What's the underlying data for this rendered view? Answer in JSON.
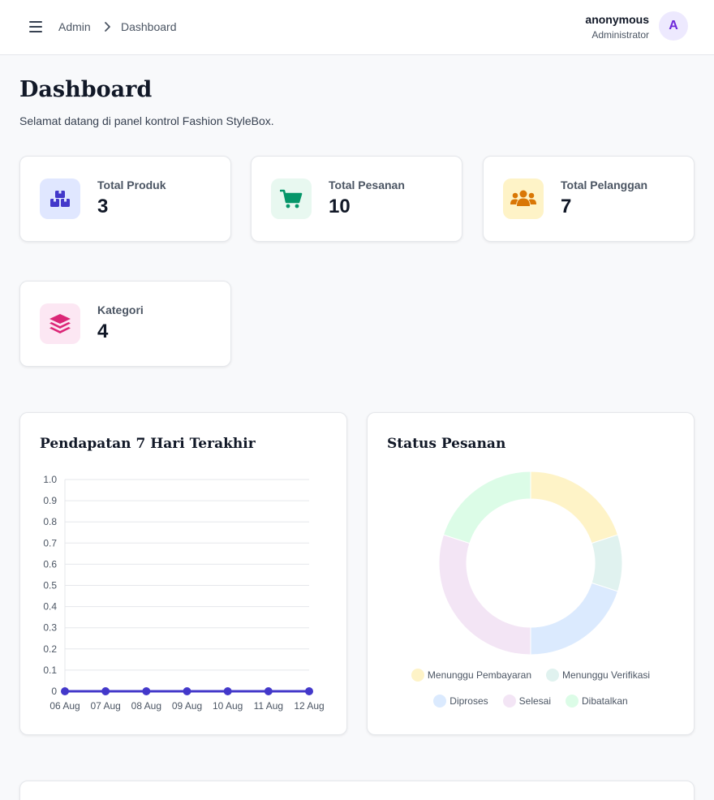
{
  "header": {
    "breadcrumb": [
      "Admin",
      "Dashboard"
    ],
    "user_name": "anonymous",
    "user_role": "Administrator",
    "avatar_initial": "A"
  },
  "page": {
    "title": "Dashboard",
    "subtitle": "Selamat datang di panel kontrol Fashion StyleBox."
  },
  "stats": [
    {
      "label": "Total Produk",
      "value": "3",
      "icon": "boxes-icon",
      "color": "#4338ca",
      "bg": "#e0e7ff"
    },
    {
      "label": "Total Pesanan",
      "value": "10",
      "icon": "shopping-cart-icon",
      "color": "#059669",
      "bg": "#e8f8f0"
    },
    {
      "label": "Total Pelanggan",
      "value": "7",
      "icon": "users-icon",
      "color": "#d97706",
      "bg": "#fef3c7"
    },
    {
      "label": "Kategori",
      "value": "4",
      "icon": "layers-icon",
      "color": "#db2777",
      "bg": "#fce7f3"
    }
  ],
  "revenue_panel": {
    "title": "Pendapatan 7 Hari Terakhir"
  },
  "status_panel": {
    "title": "Status Pesanan"
  },
  "chart_data": [
    {
      "type": "line",
      "title": "Pendapatan 7 Hari Terakhir",
      "x": [
        "06 Aug",
        "07 Aug",
        "08 Aug",
        "09 Aug",
        "10 Aug",
        "11 Aug",
        "12 Aug"
      ],
      "series": [
        {
          "values": [
            0,
            0,
            0,
            0,
            0,
            0,
            0
          ],
          "color": "#4338ca"
        }
      ],
      "ylim": [
        0,
        1.0
      ],
      "yticks": [
        "0",
        "0.1",
        "0.2",
        "0.3",
        "0.4",
        "0.5",
        "0.6",
        "0.7",
        "0.8",
        "0.9",
        "1.0"
      ],
      "grid": true
    },
    {
      "type": "pie",
      "title": "Status Pesanan",
      "donut": true,
      "labels": [
        "Menunggu Pembayaran",
        "Menunggu Verifikasi",
        "Diproses",
        "Selesai",
        "Dibatalkan"
      ],
      "values": [
        2,
        1,
        2,
        3,
        2
      ],
      "colors": [
        "#fef3c7",
        "#e0f2ef",
        "#dbeafe",
        "#f3e5f5",
        "#dcfce7"
      ],
      "legend": "bottom"
    }
  ]
}
